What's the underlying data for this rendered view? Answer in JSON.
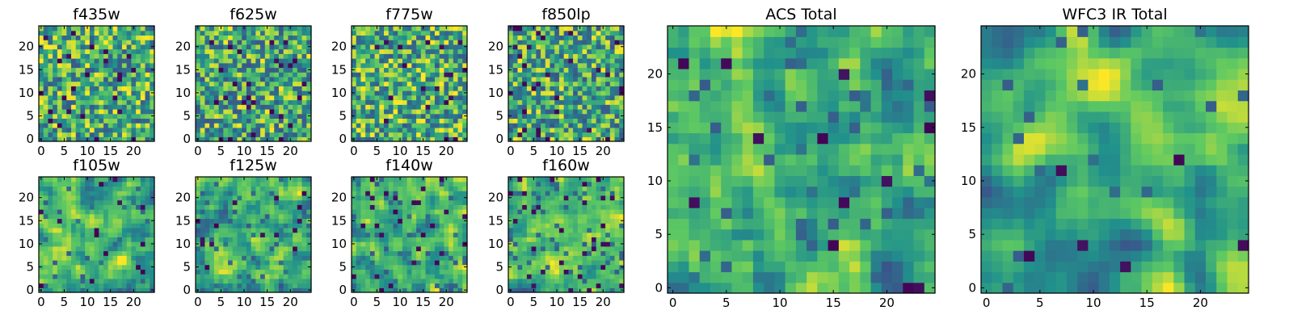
{
  "figure": {
    "background": "#ffffff"
  },
  "colormap": {
    "name": "viridis",
    "stops": [
      "#440154",
      "#3b528b",
      "#21918c",
      "#5ec962",
      "#fde725"
    ]
  },
  "chart_data": [
    {
      "type": "heatmap",
      "title": "f435w",
      "grid_size": 25,
      "seed": 11,
      "smooth": 0,
      "bias": 0.64,
      "dark_fraction": 0.035,
      "xticks": [
        0,
        5,
        10,
        15,
        20
      ],
      "yticks": [
        0,
        5,
        10,
        15,
        20
      ],
      "xlim": [
        0,
        25
      ],
      "ylim": [
        0,
        25
      ]
    },
    {
      "type": "heatmap",
      "title": "f625w",
      "grid_size": 25,
      "seed": 23,
      "smooth": 0,
      "bias": 0.6,
      "dark_fraction": 0.04,
      "xticks": [
        0,
        5,
        10,
        15,
        20
      ],
      "yticks": [
        0,
        5,
        10,
        15,
        20
      ],
      "xlim": [
        0,
        25
      ],
      "ylim": [
        0,
        25
      ]
    },
    {
      "type": "heatmap",
      "title": "f775w",
      "grid_size": 25,
      "seed": 37,
      "smooth": 0,
      "bias": 0.66,
      "dark_fraction": 0.03,
      "xticks": [
        0,
        5,
        10,
        15,
        20
      ],
      "yticks": [
        0,
        5,
        10,
        15,
        20
      ],
      "xlim": [
        0,
        25
      ],
      "ylim": [
        0,
        25
      ]
    },
    {
      "type": "heatmap",
      "title": "f850lp",
      "grid_size": 25,
      "seed": 41,
      "smooth": 0,
      "bias": 0.6,
      "dark_fraction": 0.045,
      "xticks": [
        0,
        5,
        10,
        15,
        20
      ],
      "yticks": [
        0,
        5,
        10,
        15,
        20
      ],
      "xlim": [
        0,
        25
      ],
      "ylim": [
        0,
        25
      ]
    },
    {
      "type": "heatmap",
      "title": "f105w",
      "grid_size": 25,
      "seed": 53,
      "smooth": 1,
      "bias": 0.62,
      "dark_fraction": 0.025,
      "xticks": [
        0,
        5,
        10,
        15,
        20
      ],
      "yticks": [
        0,
        5,
        10,
        15,
        20
      ],
      "xlim": [
        0,
        25
      ],
      "ylim": [
        0,
        25
      ]
    },
    {
      "type": "heatmap",
      "title": "f125w",
      "grid_size": 25,
      "seed": 67,
      "smooth": 1,
      "bias": 0.58,
      "dark_fraction": 0.03,
      "xticks": [
        0,
        5,
        10,
        15,
        20
      ],
      "yticks": [
        0,
        5,
        10,
        15,
        20
      ],
      "xlim": [
        0,
        25
      ],
      "ylim": [
        0,
        25
      ]
    },
    {
      "type": "heatmap",
      "title": "f140w",
      "grid_size": 25,
      "seed": 79,
      "smooth": 1,
      "bias": 0.6,
      "dark_fraction": 0.035,
      "xticks": [
        0,
        5,
        10,
        15,
        20
      ],
      "yticks": [
        0,
        5,
        10,
        15,
        20
      ],
      "xlim": [
        0,
        25
      ],
      "ylim": [
        0,
        25
      ]
    },
    {
      "type": "heatmap",
      "title": "f160w",
      "grid_size": 25,
      "seed": 97,
      "smooth": 1,
      "bias": 0.6,
      "dark_fraction": 0.035,
      "xticks": [
        0,
        5,
        10,
        15,
        20
      ],
      "yticks": [
        0,
        5,
        10,
        15,
        20
      ],
      "xlim": [
        0,
        25
      ],
      "ylim": [
        0,
        25
      ]
    },
    {
      "type": "heatmap",
      "title": "ACS Total",
      "grid_size": 25,
      "seed": 131,
      "smooth": 1,
      "bias": 0.62,
      "dark_fraction": 0.02,
      "xticks": [
        0,
        5,
        10,
        15,
        20
      ],
      "yticks": [
        0,
        5,
        10,
        15,
        20
      ],
      "xlim": [
        0,
        25
      ],
      "ylim": [
        0,
        25
      ]
    },
    {
      "type": "heatmap",
      "title": "WFC3 IR Total",
      "grid_size": 25,
      "seed": 149,
      "smooth": 2,
      "bias": 0.64,
      "dark_fraction": 0.012,
      "xticks": [
        0,
        5,
        10,
        15,
        20
      ],
      "yticks": [
        0,
        5,
        10,
        15,
        20
      ],
      "xlim": [
        0,
        25
      ],
      "ylim": [
        0,
        25
      ]
    }
  ]
}
